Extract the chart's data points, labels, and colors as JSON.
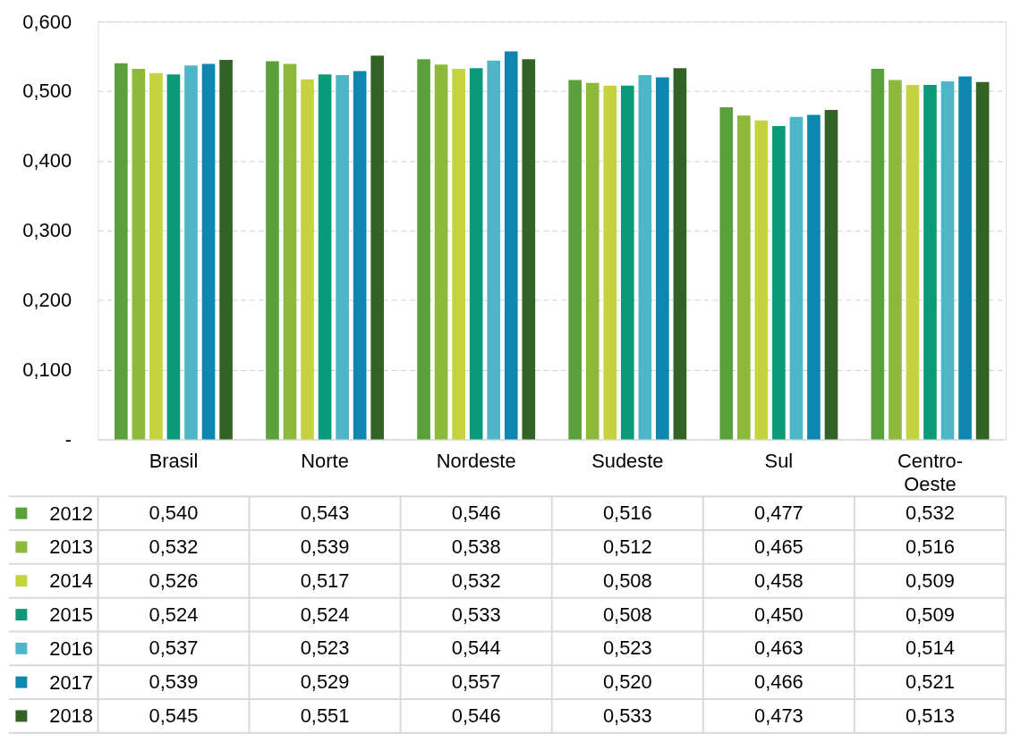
{
  "chart_data": {
    "type": "bar",
    "categories": [
      "Brasil",
      "Norte",
      "Nordeste",
      "Sudeste",
      "Sul",
      "Centro-Oeste"
    ],
    "series": [
      {
        "name": "2012",
        "color": "#5aa13c",
        "values": [
          0.54,
          0.543,
          0.546,
          0.516,
          0.477,
          0.532
        ],
        "value_labels": [
          "0,540",
          "0,543",
          "0,546",
          "0,516",
          "0,477",
          "0,532"
        ]
      },
      {
        "name": "2013",
        "color": "#8db93a",
        "values": [
          0.532,
          0.539,
          0.538,
          0.512,
          0.465,
          0.516
        ],
        "value_labels": [
          "0,532",
          "0,539",
          "0,538",
          "0,512",
          "0,465",
          "0,516"
        ]
      },
      {
        "name": "2014",
        "color": "#c5d33f",
        "values": [
          0.526,
          0.517,
          0.532,
          0.508,
          0.458,
          0.509
        ],
        "value_labels": [
          "0,526",
          "0,517",
          "0,532",
          "0,508",
          "0,458",
          "0,509"
        ]
      },
      {
        "name": "2015",
        "color": "#0a9a78",
        "values": [
          0.524,
          0.524,
          0.533,
          0.508,
          0.45,
          0.509
        ],
        "value_labels": [
          "0,524",
          "0,524",
          "0,533",
          "0,508",
          "0,450",
          "0,509"
        ]
      },
      {
        "name": "2016",
        "color": "#4db6c8",
        "values": [
          0.537,
          0.523,
          0.544,
          0.523,
          0.463,
          0.514
        ],
        "value_labels": [
          "0,537",
          "0,523",
          "0,544",
          "0,523",
          "0,463",
          "0,514"
        ]
      },
      {
        "name": "2017",
        "color": "#0e86b0",
        "values": [
          0.539,
          0.529,
          0.557,
          0.52,
          0.466,
          0.521
        ],
        "value_labels": [
          "0,539",
          "0,529",
          "0,557",
          "0,520",
          "0,466",
          "0,521"
        ]
      },
      {
        "name": "2018",
        "color": "#336227",
        "values": [
          0.545,
          0.551,
          0.546,
          0.533,
          0.473,
          0.513
        ],
        "value_labels": [
          "0,545",
          "0,551",
          "0,546",
          "0,533",
          "0,473",
          "0,513"
        ]
      }
    ],
    "ylim": [
      0,
      0.6
    ],
    "yticks": [
      {
        "value": 0,
        "label": "-"
      },
      {
        "value": 0.1,
        "label": "0,100"
      },
      {
        "value": 0.2,
        "label": "0,200"
      },
      {
        "value": 0.3,
        "label": "0,300"
      },
      {
        "value": 0.4,
        "label": "0,400"
      },
      {
        "value": 0.5,
        "label": "0,500"
      },
      {
        "value": 0.6,
        "label": "0,600"
      }
    ],
    "grid": "y",
    "legend": "bottom"
  }
}
